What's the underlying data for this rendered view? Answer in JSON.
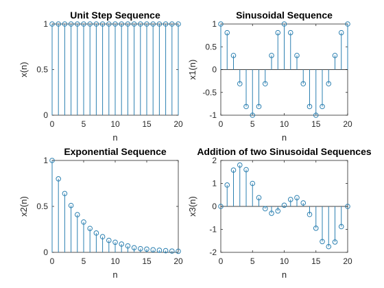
{
  "colors": {
    "stem": "#2a7fb0",
    "axis": "#262626",
    "background": "#ffffff"
  },
  "chart_data": [
    {
      "type": "stem",
      "title": "Unit Step Sequence",
      "xlabel": "n",
      "ylabel": "x(n)",
      "xlim": [
        0,
        20
      ],
      "ylim": [
        0,
        1
      ],
      "xticks": [
        0,
        5,
        10,
        15,
        20
      ],
      "yticks": [
        0,
        0.5,
        1
      ],
      "xticklabels": [
        "0",
        "5",
        "10",
        "15",
        "20"
      ],
      "yticklabels": [
        "0",
        "0.5",
        "1"
      ],
      "x": [
        0,
        1,
        2,
        3,
        4,
        5,
        6,
        7,
        8,
        9,
        10,
        11,
        12,
        13,
        14,
        15,
        16,
        17,
        18,
        19,
        20
      ],
      "y": [
        1,
        1,
        1,
        1,
        1,
        1,
        1,
        1,
        1,
        1,
        1,
        1,
        1,
        1,
        1,
        1,
        1,
        1,
        1,
        1,
        1
      ]
    },
    {
      "type": "stem",
      "title": "Sinusoidal Sequence",
      "xlabel": "n",
      "ylabel": "x1(n)",
      "xlim": [
        0,
        20
      ],
      "ylim": [
        -1,
        1
      ],
      "xticks": [
        0,
        5,
        10,
        15,
        20
      ],
      "yticks": [
        -1,
        -0.5,
        0,
        0.5,
        1
      ],
      "xticklabels": [
        "0",
        "5",
        "10",
        "15",
        "20"
      ],
      "yticklabels": [
        "-1",
        "-0.5",
        "0",
        "0.5",
        "1"
      ],
      "x": [
        0,
        1,
        2,
        3,
        4,
        5,
        6,
        7,
        8,
        9,
        10,
        11,
        12,
        13,
        14,
        15,
        16,
        17,
        18,
        19,
        20
      ],
      "y": [
        1,
        0.81,
        0.31,
        -0.31,
        -0.81,
        -1,
        -0.81,
        -0.31,
        0.31,
        0.81,
        1,
        0.81,
        0.31,
        -0.31,
        -0.81,
        -1,
        -0.81,
        -0.31,
        0.31,
        0.81,
        1
      ]
    },
    {
      "type": "stem",
      "title": "Exponential Sequence",
      "xlabel": "n",
      "ylabel": "x2(n)",
      "xlim": [
        0,
        20
      ],
      "ylim": [
        0,
        1
      ],
      "xticks": [
        0,
        5,
        10,
        15,
        20
      ],
      "yticks": [
        0,
        0.5,
        1
      ],
      "xticklabels": [
        "0",
        "5",
        "10",
        "15",
        "20"
      ],
      "yticklabels": [
        "0",
        "0.5",
        "1"
      ],
      "x": [
        0,
        1,
        2,
        3,
        4,
        5,
        6,
        7,
        8,
        9,
        10,
        11,
        12,
        13,
        14,
        15,
        16,
        17,
        18,
        19,
        20
      ],
      "y": [
        1,
        0.8,
        0.64,
        0.51,
        0.41,
        0.33,
        0.26,
        0.21,
        0.17,
        0.13,
        0.11,
        0.09,
        0.07,
        0.05,
        0.04,
        0.035,
        0.028,
        0.023,
        0.018,
        0.014,
        0.012
      ]
    },
    {
      "type": "stem",
      "title": "Addition of two Sinusoidal Sequences",
      "xlabel": "n",
      "ylabel": "x3(n)",
      "xlim": [
        0,
        20
      ],
      "ylim": [
        -2,
        2
      ],
      "xticks": [
        0,
        5,
        10,
        15,
        20
      ],
      "yticks": [
        -2,
        -1,
        0,
        1,
        2
      ],
      "xticklabels": [
        "0",
        "5",
        "10",
        "15",
        "20"
      ],
      "yticklabels": [
        "-2",
        "-1",
        "0",
        "1",
        "2"
      ],
      "x": [
        0,
        1,
        2,
        3,
        4,
        5,
        6,
        7,
        8,
        9,
        10,
        11,
        12,
        13,
        14,
        15,
        16,
        17,
        18,
        19,
        20
      ],
      "y": [
        0,
        0.93,
        1.58,
        1.8,
        1.6,
        1.0,
        0.38,
        -0.1,
        -0.3,
        -0.2,
        0.05,
        0.3,
        0.38,
        0.15,
        -0.35,
        -0.95,
        -1.53,
        -1.75,
        -1.55,
        -0.88,
        0
      ]
    }
  ]
}
